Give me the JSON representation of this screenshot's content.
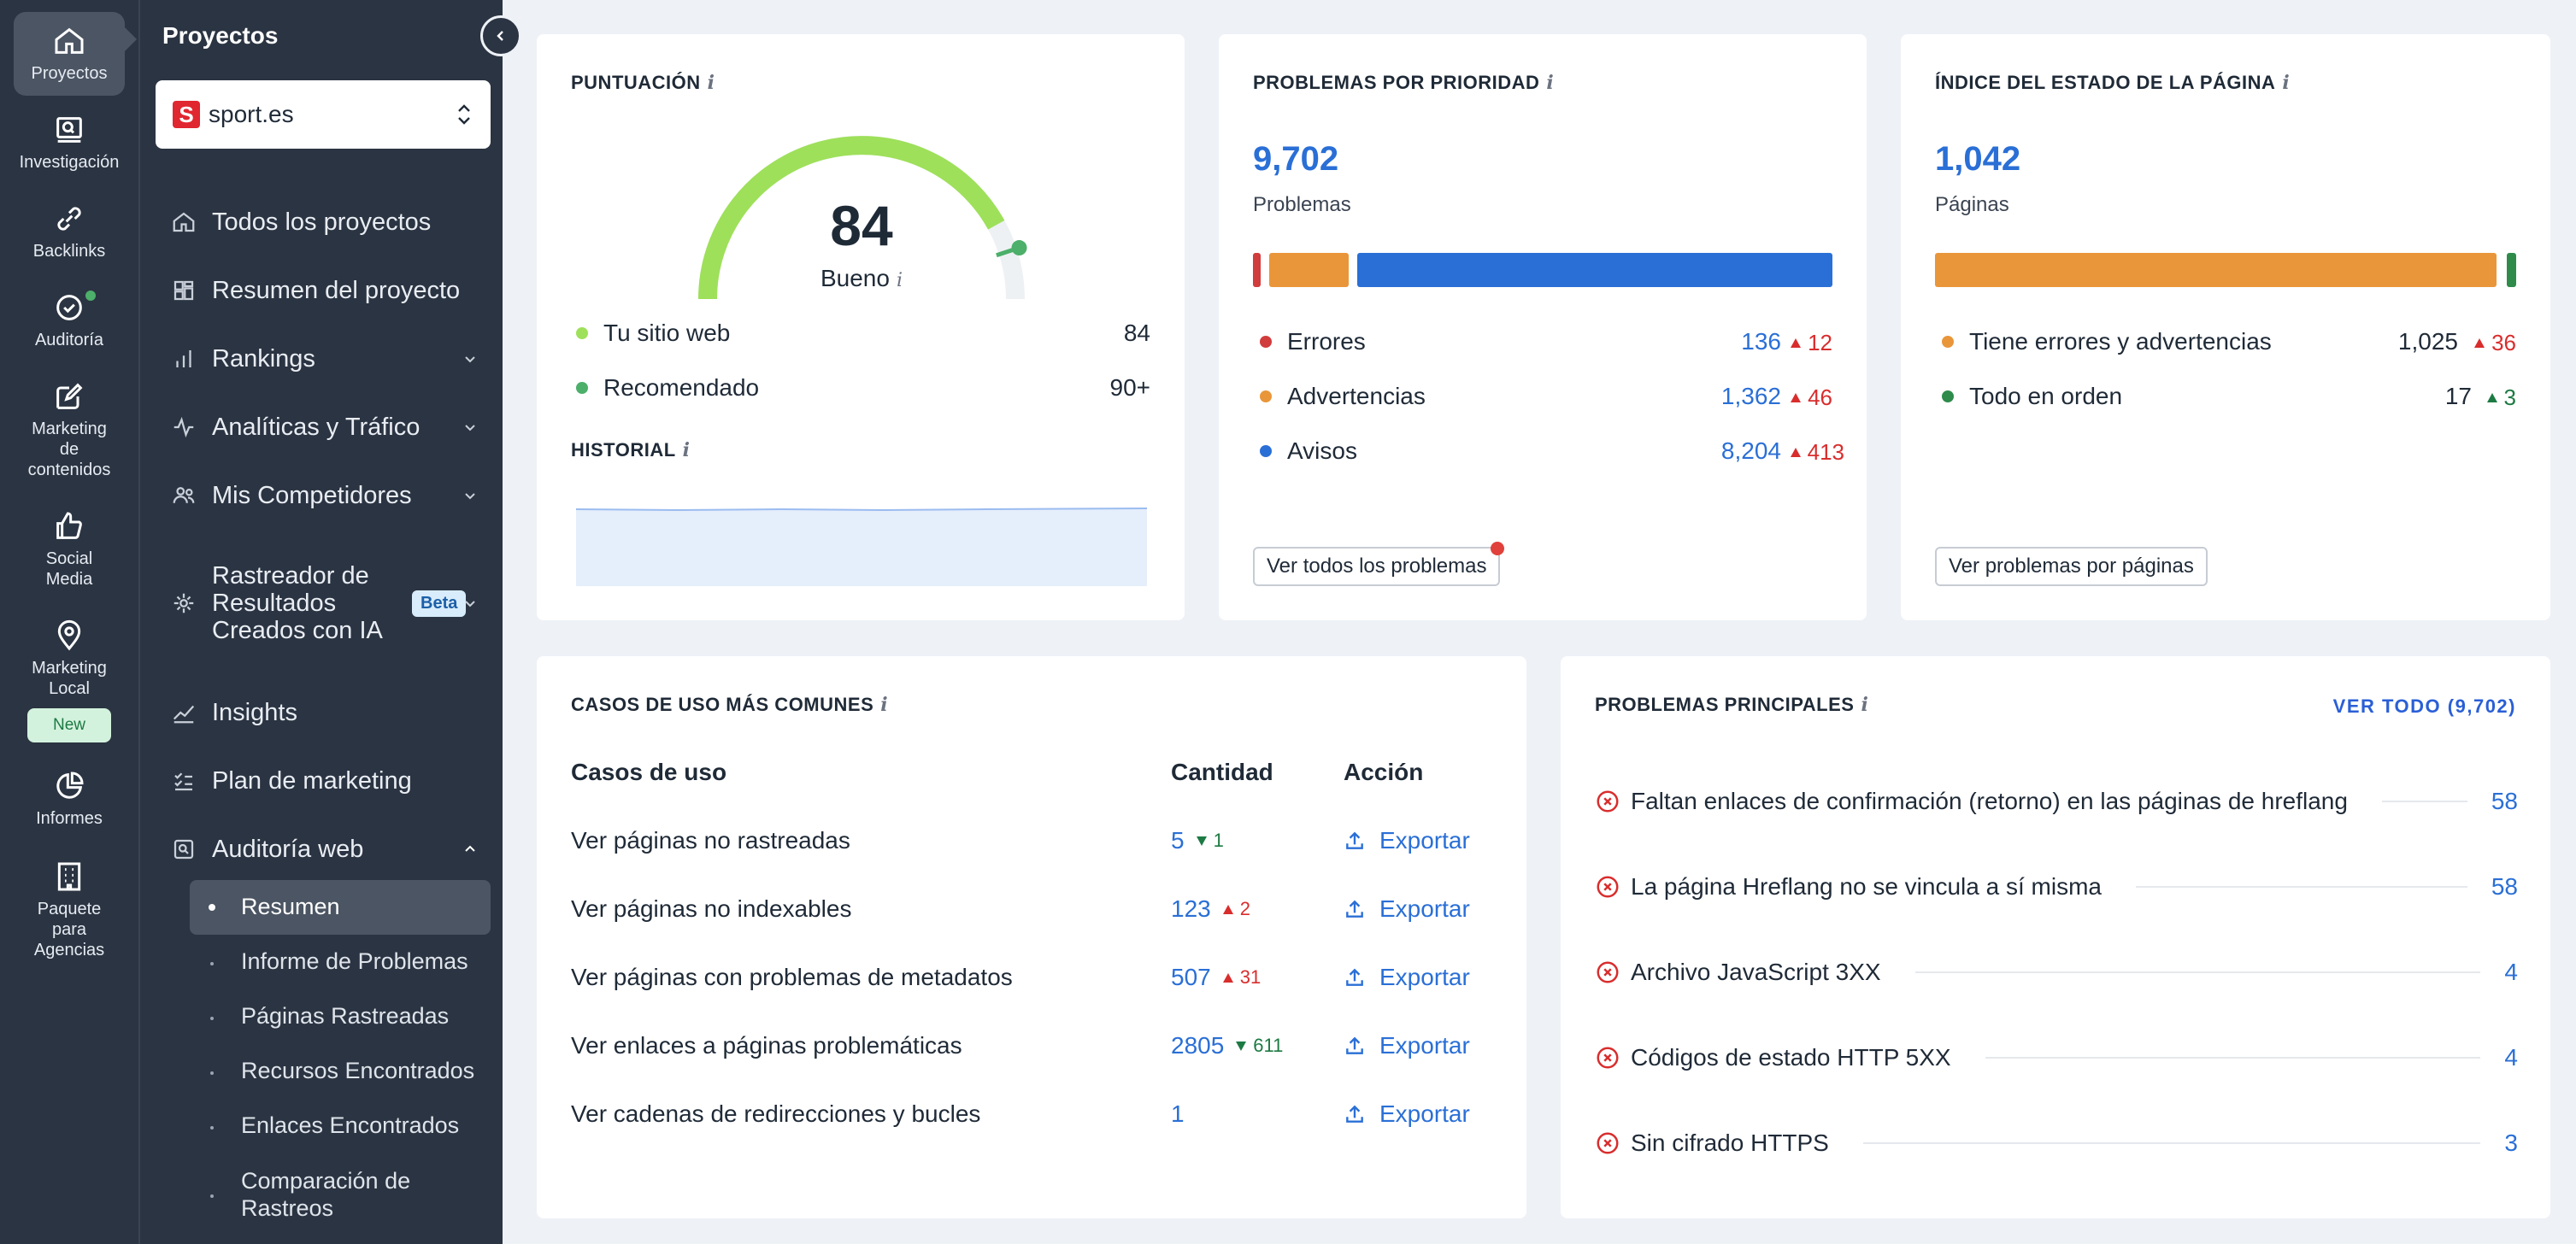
{
  "rail": {
    "items": [
      {
        "label": "Proyectos",
        "icon": "home-icon"
      },
      {
        "label": "Investigación",
        "icon": "research-icon"
      },
      {
        "label": "Backlinks",
        "icon": "link-icon"
      },
      {
        "label": "Auditoría",
        "icon": "check-circle-icon"
      },
      {
        "label": "Marketing de contenidos",
        "icon": "edit-icon"
      },
      {
        "label": "Social Media",
        "icon": "thumbs-up-icon"
      },
      {
        "label": "Marketing Local",
        "icon": "location-pin-icon"
      },
      {
        "label": "Informes",
        "icon": "pie-chart-icon"
      },
      {
        "label": "Paquete para Agencias",
        "icon": "building-icon"
      }
    ],
    "new_badge": "New"
  },
  "sidebar": {
    "title": "Proyectos",
    "project": {
      "name": "sport.es",
      "logo_letter": "S"
    },
    "nav": [
      {
        "label": "Todos los proyectos"
      },
      {
        "label": "Resumen del proyecto"
      },
      {
        "label": "Rankings"
      },
      {
        "label": "Analíticas y Tráfico"
      },
      {
        "label": "Mis Competidores"
      },
      {
        "label": "Rastreador de Resultados Creados con IA",
        "badge": "Beta"
      },
      {
        "label": "Insights"
      },
      {
        "label": "Plan de marketing"
      },
      {
        "label": "Auditoría web"
      }
    ],
    "audit_sub": [
      {
        "label": "Resumen",
        "active": true
      },
      {
        "label": "Informe de Problemas"
      },
      {
        "label": "Páginas Rastreadas"
      },
      {
        "label": "Recursos Encontrados"
      },
      {
        "label": "Enlaces Encontrados"
      },
      {
        "label": "Comparación de Rastreos"
      }
    ]
  },
  "score": {
    "title": "PUNTUACIÓN",
    "info": "i",
    "value": "84",
    "value_num": 84,
    "rating": "Bueno",
    "rows": [
      {
        "label": "Tu sitio web",
        "value": "84",
        "color": "#9ee05a"
      },
      {
        "label": "Recomendado",
        "value": "90+",
        "color": "#4caf6a"
      }
    ],
    "history_title": "HISTORIAL"
  },
  "priority": {
    "title": "PROBLEMAS POR PRIORIDAD",
    "info": "i",
    "total": "9,702",
    "total_label": "Problemas",
    "rows": [
      {
        "label": "Errores",
        "value": "136",
        "delta": "12",
        "color": "#d13c3c"
      },
      {
        "label": "Advertencias",
        "value": "1,362",
        "delta": "46",
        "color": "#e9963a"
      },
      {
        "label": "Avisos",
        "value": "8,204",
        "delta": "413",
        "color": "#2a6fd6"
      }
    ],
    "button": "Ver todos los problemas"
  },
  "health": {
    "title": "ÍNDICE DEL ESTADO DE LA PÁGINA",
    "info": "i",
    "total": "1,042",
    "total_label": "Páginas",
    "rows": [
      {
        "label": "Tiene errores y advertencias",
        "value": "1,025",
        "delta": "36",
        "color": "#e9963a"
      },
      {
        "label": "Todo en orden",
        "value": "17",
        "delta": "3",
        "color": "#2e8b4a"
      }
    ],
    "button": "Ver problemas por páginas"
  },
  "use_cases": {
    "title": "CASOS DE USO MÁS COMUNES",
    "info": "i",
    "headers": {
      "case": "Casos de uso",
      "count": "Cantidad",
      "action": "Acción"
    },
    "rows": [
      {
        "label": "Ver páginas no rastreadas",
        "count": "5",
        "delta": "1",
        "dir": "down",
        "action": "Exportar"
      },
      {
        "label": "Ver páginas no indexables",
        "count": "123",
        "delta": "2",
        "dir": "up",
        "action": "Exportar"
      },
      {
        "label": "Ver páginas con problemas de metadatos",
        "count": "507",
        "delta": "31",
        "dir": "up",
        "action": "Exportar"
      },
      {
        "label": "Ver enlaces a páginas problemáticas",
        "count": "2805",
        "delta": "611",
        "dir": "down",
        "action": "Exportar"
      },
      {
        "label": "Ver cadenas de redirecciones y bucles",
        "count": "1",
        "delta": "",
        "dir": "",
        "action": "Exportar"
      }
    ]
  },
  "top_issues": {
    "title": "PROBLEMAS PRINCIPALES",
    "info": "i",
    "view_all": "VER TODO (9,702)",
    "rows": [
      {
        "label": "Faltan enlaces de confirmación (retorno) en las páginas de hreflang",
        "count": "58"
      },
      {
        "label": "La página Hreflang no se vincula a sí misma",
        "count": "58"
      },
      {
        "label": "Archivo JavaScript 3XX",
        "count": "4"
      },
      {
        "label": "Códigos de estado HTTP 5XX",
        "count": "4"
      },
      {
        "label": "Sin cifrado HTTPS",
        "count": "3"
      }
    ]
  }
}
